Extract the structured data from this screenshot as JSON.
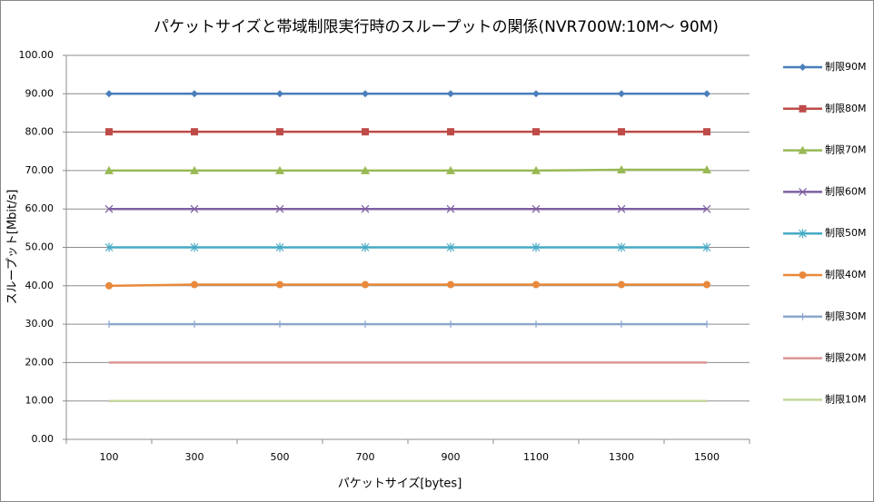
{
  "chart_data": {
    "type": "line",
    "title": "パケットサイズと帯域制限実行時のスループットの関係(NVR700W:10M～ 90M)",
    "x_label": "パケットサイズ[bytes]",
    "y_label": "スループット[Mbit/s]",
    "categories": [
      "100",
      "300",
      "500",
      "700",
      "900",
      "1100",
      "1300",
      "1500"
    ],
    "ylim": [
      0,
      100
    ],
    "yticks": [
      {
        "value": 0,
        "label": "0.00"
      },
      {
        "value": 10,
        "label": "10.00"
      },
      {
        "value": 20,
        "label": "20.00"
      },
      {
        "value": 30,
        "label": "30.00"
      },
      {
        "value": 40,
        "label": "40.00"
      },
      {
        "value": 50,
        "label": "50.00"
      },
      {
        "value": 60,
        "label": "60.00"
      },
      {
        "value": 70,
        "label": "70.00"
      },
      {
        "value": 80,
        "label": "80.00"
      },
      {
        "value": 90,
        "label": "90.00"
      },
      {
        "value": 100,
        "label": "100.00"
      }
    ],
    "grid": true,
    "legend": "right",
    "series": [
      {
        "name": "制限90M",
        "color": "#4a7ebb",
        "marker": "diamond",
        "values": [
          90,
          90,
          90,
          90,
          90,
          90,
          90,
          90
        ]
      },
      {
        "name": "制限80M",
        "color": "#be4b48",
        "marker": "square",
        "values": [
          80.1,
          80.1,
          80.1,
          80.1,
          80.1,
          80.1,
          80.1,
          80.1
        ]
      },
      {
        "name": "制限70M",
        "color": "#98b954",
        "marker": "triangle",
        "values": [
          70,
          70,
          70,
          70,
          70,
          70,
          70.2,
          70.2
        ]
      },
      {
        "name": "制限60M",
        "color": "#7d5fa0",
        "marker": "x",
        "values": [
          60,
          60,
          60,
          60,
          60,
          60,
          60,
          60
        ]
      },
      {
        "name": "制限50M",
        "color": "#46aac5",
        "marker": "star",
        "values": [
          50,
          50,
          50,
          50,
          50,
          50,
          50,
          50
        ]
      },
      {
        "name": "制限40M",
        "color": "#e8893c",
        "marker": "circle",
        "values": [
          40,
          40.3,
          40.3,
          40.3,
          40.3,
          40.3,
          40.3,
          40.3
        ]
      },
      {
        "name": "制限30M",
        "color": "#8ea6cc",
        "marker": "plus",
        "values": [
          30,
          30,
          30,
          30,
          30,
          30,
          30,
          30
        ]
      },
      {
        "name": "制限20M",
        "color": "#d99694",
        "marker": "none",
        "values": [
          20,
          20,
          20,
          20,
          20,
          20,
          20,
          20
        ]
      },
      {
        "name": "制限10M",
        "color": "#c3d69b",
        "marker": "none",
        "values": [
          10,
          10,
          10,
          10,
          10,
          10,
          10,
          10
        ]
      }
    ]
  }
}
